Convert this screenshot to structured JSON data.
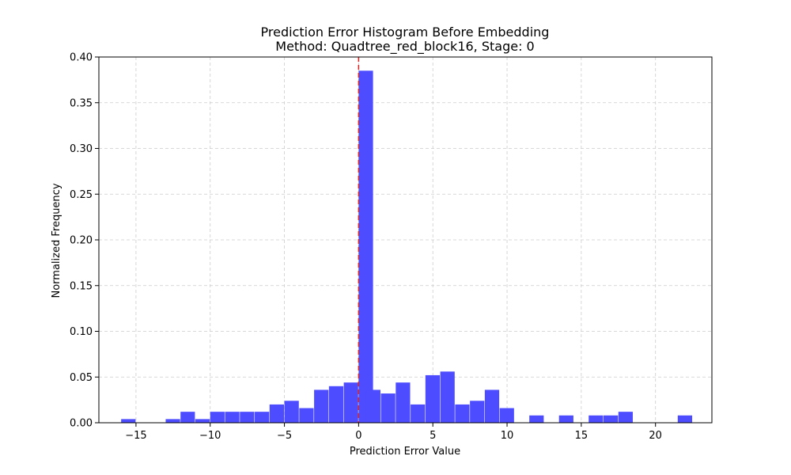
{
  "chart_data": {
    "type": "bar",
    "title": "Prediction Error Histogram Before Embedding",
    "subtitle": "Method: Quadtree_red_block16, Stage: 0",
    "xlabel": "Prediction Error Value",
    "ylabel": "Normalized Frequency",
    "xlim": [
      -17.5,
      23.8
    ],
    "ylim": [
      0,
      0.4
    ],
    "xticks": [
      -15,
      -10,
      -5,
      0,
      5,
      10,
      15,
      20
    ],
    "yticks": [
      0.0,
      0.05,
      0.1,
      0.15,
      0.2,
      0.25,
      0.3,
      0.35,
      0.4
    ],
    "bin_width": 0.97,
    "grid": true,
    "reference_line": {
      "x": 0,
      "color": "#dd2222",
      "style": "dashed"
    },
    "bar_color": "#4d4dff",
    "bins": [
      {
        "x0": -16.0,
        "value": 0.004
      },
      {
        "x0": -13.0,
        "value": 0.004
      },
      {
        "x0": -12.0,
        "value": 0.012
      },
      {
        "x0": -11.0,
        "value": 0.004
      },
      {
        "x0": -10.0,
        "value": 0.012
      },
      {
        "x0": -9.0,
        "value": 0.012
      },
      {
        "x0": -8.0,
        "value": 0.012
      },
      {
        "x0": -7.0,
        "value": 0.012
      },
      {
        "x0": -6.0,
        "value": 0.02
      },
      {
        "x0": -5.0,
        "value": 0.024
      },
      {
        "x0": -4.0,
        "value": 0.016
      },
      {
        "x0": -3.0,
        "value": 0.036
      },
      {
        "x0": -2.0,
        "value": 0.04
      },
      {
        "x0": -1.0,
        "value": 0.044
      },
      {
        "x0": 0.0,
        "value": 0.385
      },
      {
        "x0": 0.5,
        "value": 0.036
      },
      {
        "x0": 1.5,
        "value": 0.032
      },
      {
        "x0": 2.5,
        "value": 0.044
      },
      {
        "x0": 3.5,
        "value": 0.02
      },
      {
        "x0": 4.5,
        "value": 0.052
      },
      {
        "x0": 5.5,
        "value": 0.056
      },
      {
        "x0": 6.5,
        "value": 0.02
      },
      {
        "x0": 7.5,
        "value": 0.024
      },
      {
        "x0": 8.5,
        "value": 0.036
      },
      {
        "x0": 9.5,
        "value": 0.016
      },
      {
        "x0": 11.5,
        "value": 0.008
      },
      {
        "x0": 13.5,
        "value": 0.008
      },
      {
        "x0": 15.5,
        "value": 0.008
      },
      {
        "x0": 16.5,
        "value": 0.008
      },
      {
        "x0": 17.5,
        "value": 0.012
      },
      {
        "x0": 21.5,
        "value": 0.008
      }
    ]
  }
}
